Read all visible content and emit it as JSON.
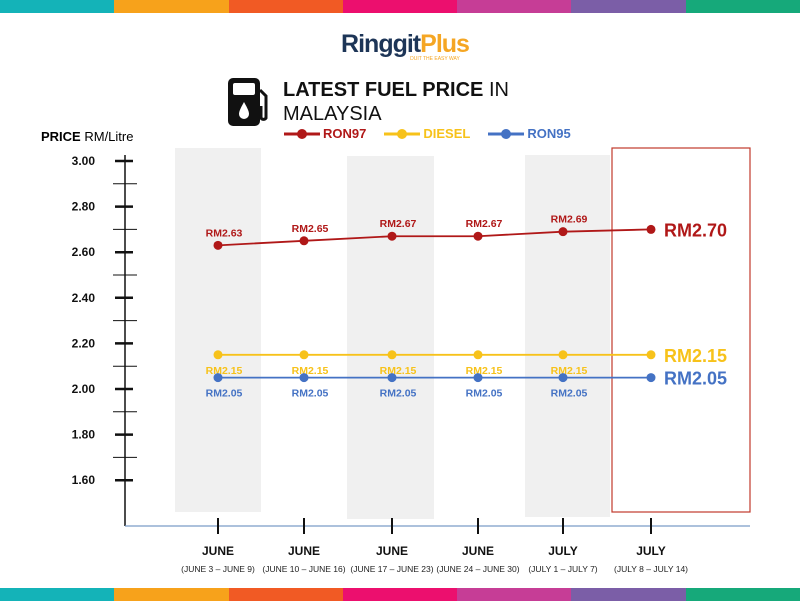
{
  "logo": {
    "name_a": "Ringgit",
    "name_b": "Plus",
    "tagline": "DUIT THE EASY WAY"
  },
  "title": {
    "bold": "LATEST FUEL PRICE",
    "rest": " IN",
    "line2": "MALAYSIA"
  },
  "colors": {
    "RON97": "#b01818",
    "DIESEL": "#f7c21a",
    "RON95": "#4472c4",
    "highlight": "#c0392b",
    "band": "#f0f0f0"
  },
  "top_bar_colors": [
    "#14b3b8",
    "#f7a21b",
    "#f15a24",
    "#ec0f6e",
    "#c63d96",
    "#7b5ea7",
    "#16a97a"
  ],
  "bottom_bar_colors": [
    "#14b3b8",
    "#f7a21b",
    "#f15a24",
    "#ec0f6e",
    "#c63d96",
    "#7b5ea7",
    "#16a97a"
  ],
  "chart_data": {
    "type": "line",
    "ylabel_bold": "PRICE",
    "ylabel_rest": " RM/Litre",
    "ylim": [
      1.5,
      3.0
    ],
    "yticks": [
      "3.00",
      "2.80",
      "2.60",
      "2.40",
      "2.20",
      "2.00",
      "1.80",
      "1.60"
    ],
    "categories": [
      {
        "month": "JUNE",
        "range": "(JUNE 3 – JUNE 9)"
      },
      {
        "month": "JUNE",
        "range": "(JUNE 10 – JUNE 16)"
      },
      {
        "month": "JUNE",
        "range": "(JUNE 17 – JUNE 23)"
      },
      {
        "month": "JUNE",
        "range": "(JUNE 24 – JUNE 30)"
      },
      {
        "month": "JULY",
        "range": "(JULY 1 – JULY 7)"
      },
      {
        "month": "JULY",
        "range": "(JULY 8 – JULY 14)"
      }
    ],
    "legend": [
      "RON97",
      "DIESEL",
      "RON95"
    ],
    "legend_position": "top",
    "series": [
      {
        "name": "RON97",
        "values": [
          2.63,
          2.65,
          2.67,
          2.67,
          2.69,
          2.7
        ],
        "labels": [
          "RM2.63",
          "RM2.65",
          "RM2.67",
          "RM2.67",
          "RM2.69",
          "RM2.70"
        ]
      },
      {
        "name": "DIESEL",
        "values": [
          2.15,
          2.15,
          2.15,
          2.15,
          2.15,
          2.15
        ],
        "labels": [
          "RM2.15",
          "RM2.15",
          "RM2.15",
          "RM2.15",
          "RM2.15",
          "RM2.15"
        ]
      },
      {
        "name": "RON95",
        "values": [
          2.05,
          2.05,
          2.05,
          2.05,
          2.05,
          2.05
        ],
        "labels": [
          "RM2.05",
          "RM2.05",
          "RM2.05",
          "RM2.05",
          "RM2.05",
          "RM2.05"
        ]
      }
    ],
    "highlighted_category": 5
  }
}
